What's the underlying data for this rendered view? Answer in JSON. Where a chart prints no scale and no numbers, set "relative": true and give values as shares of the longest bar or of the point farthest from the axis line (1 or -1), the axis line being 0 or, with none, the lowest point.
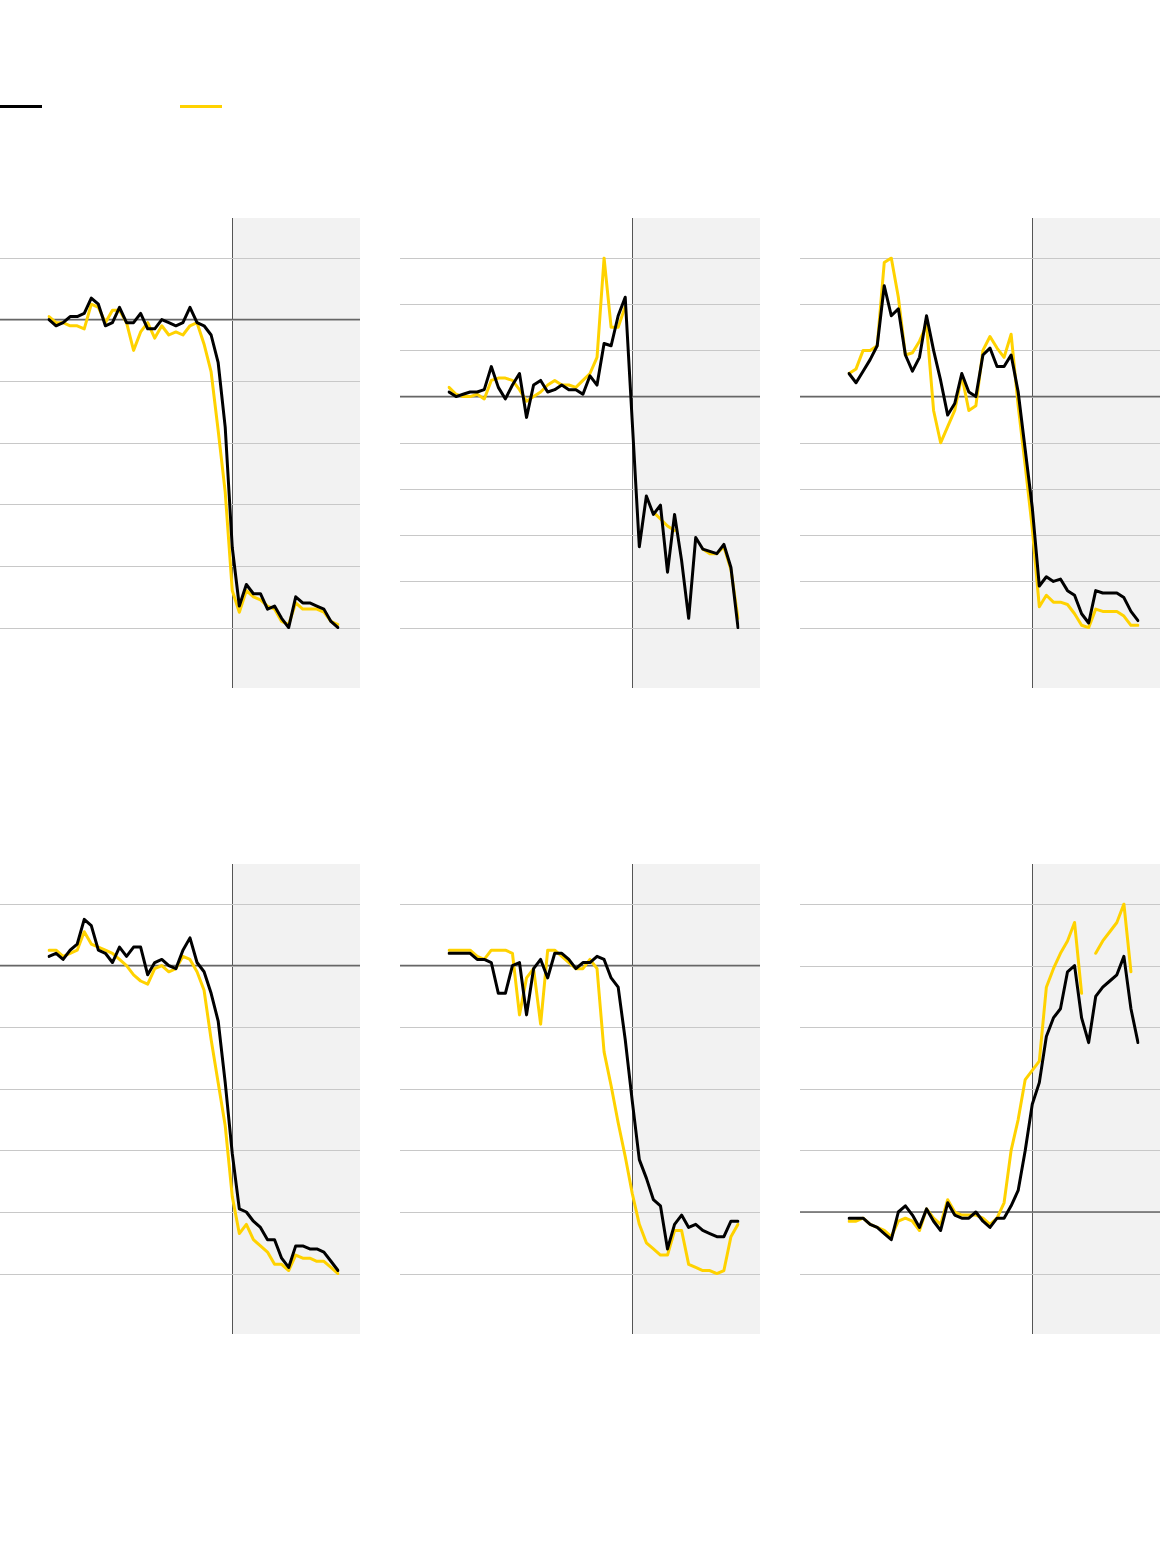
{
  "chart_data": [
    {
      "type": "line",
      "relative": true,
      "categories": [
        null,
        null,
        null,
        null,
        null,
        null,
        null,
        null,
        null,
        null,
        null,
        null,
        null,
        null,
        null,
        null,
        null,
        null,
        null,
        null,
        null,
        null,
        null,
        null,
        null,
        null,
        null,
        null,
        null,
        null,
        null,
        null,
        null,
        null,
        null,
        null,
        null,
        null,
        null,
        null,
        null,
        null
      ],
      "grid": "y",
      "marker": "none",
      "line_style": "solid",
      "series": [
        {
          "color": "#000000",
          "values": [
            0.0,
            -0.02,
            -0.01,
            0.01,
            0.01,
            0.02,
            0.07,
            0.05,
            -0.02,
            -0.01,
            0.04,
            -0.01,
            -0.01,
            0.02,
            -0.03,
            -0.03,
            0,
            -0.01,
            -0.02,
            -0.01,
            0.04,
            -0.01,
            -0.02,
            -0.05,
            -0.14,
            -0.35,
            -0.74,
            -0.93,
            -0.86,
            -0.89,
            -0.89,
            -0.94,
            -0.93,
            -0.97,
            -1,
            -0.9,
            -0.92,
            -0.92,
            -0.93,
            -0.94,
            -0.98,
            -1
          ]
        },
        {
          "color": "#ffd200",
          "values": [
            0.01,
            -0.01,
            -0.01,
            -0.02,
            -0.02,
            -0.03,
            0.05,
            0.04,
            -0.01,
            0.03,
            0.03,
            -0.01,
            -0.1,
            -0.04,
            -0.01,
            -0.06,
            -0.02,
            -0.05,
            -0.04,
            -0.05,
            -0.02,
            -0.01,
            -0.08,
            -0.17,
            -0.36,
            -0.56,
            -0.88,
            -0.95,
            -0.88,
            -0.9,
            -0.91,
            -0.93,
            -0.94,
            -0.98,
            -0.99,
            -0.92,
            -0.94,
            -0.94,
            -0.94,
            -0.95,
            -0.98,
            -0.99
          ]
        }
      ]
    },
    {
      "type": "line",
      "relative": true,
      "categories": [
        null,
        null,
        null,
        null,
        null,
        null,
        null,
        null,
        null,
        null,
        null,
        null,
        null,
        null,
        null,
        null,
        null,
        null,
        null,
        null,
        null,
        null,
        null,
        null,
        null,
        null,
        null,
        null,
        null,
        null,
        null,
        null,
        null,
        null,
        null,
        null,
        null,
        null,
        null,
        null,
        null,
        null
      ],
      "grid": "y",
      "marker": "none",
      "line_style": "solid",
      "series": [
        {
          "color": "#000000",
          "values": [
            0.02,
            0,
            0.01,
            0.02,
            0.02,
            0.03,
            0.13,
            0.04,
            -0.01,
            0.05,
            0.1,
            -0.09,
            0.05,
            0.07,
            0.02,
            0.03,
            0.05,
            0.03,
            0.03,
            0.01,
            0.09,
            0.05,
            0.23,
            0.22,
            0.35,
            0.43,
            -0.11,
            -0.65,
            -0.43,
            -0.51,
            -0.47,
            -0.76,
            -0.51,
            -0.71,
            -0.96,
            -0.61,
            -0.66,
            -0.67,
            -0.68,
            -0.64,
            -0.74,
            -1
          ]
        },
        {
          "color": "#ffd200",
          "values": [
            0.04,
            0.01,
            0.0,
            0.0,
            0.01,
            -0.01,
            0.07,
            0.08,
            0.08,
            0.07,
            0.03,
            -0.02,
            0.0,
            0.02,
            0.05,
            0.07,
            0.05,
            0.05,
            0.04,
            0.07,
            0.1,
            0.17,
            0.6,
            0.3,
            0.3,
            0.39,
            null,
            null,
            null,
            -0.5,
            -0.53,
            -0.56,
            -0.58,
            null,
            null,
            null,
            -0.66,
            -0.68,
            -0.68,
            -0.65,
            -0.75,
            -0.96
          ]
        }
      ]
    },
    {
      "type": "line",
      "relative": true,
      "categories": [
        null,
        null,
        null,
        null,
        null,
        null,
        null,
        null,
        null,
        null,
        null,
        null,
        null,
        null,
        null,
        null,
        null,
        null,
        null,
        null,
        null,
        null,
        null,
        null,
        null,
        null,
        null,
        null,
        null,
        null,
        null,
        null,
        null,
        null,
        null,
        null,
        null,
        null,
        null,
        null,
        null,
        null
      ],
      "grid": "y",
      "marker": "none",
      "line_style": "solid",
      "series": [
        {
          "color": "#000000",
          "values": [
            0.1,
            0.06,
            0.11,
            0.16,
            0.22,
            0.48,
            0.35,
            0.38,
            0.18,
            0.11,
            0.17,
            0.35,
            0.2,
            0.07,
            -0.08,
            -0.03,
            0.1,
            0.02,
            0.0,
            0.18,
            0.21,
            0.13,
            0.13,
            0.18,
            0.02,
            -0.23,
            -0.48,
            -0.82,
            -0.78,
            -0.8,
            -0.79,
            -0.84,
            -0.86,
            -0.94,
            -0.98,
            -0.84,
            -0.85,
            -0.85,
            -0.85,
            -0.87,
            -0.93,
            -0.97
          ]
        },
        {
          "color": "#ffd200",
          "values": [
            0.1,
            0.12,
            0.2,
            0.2,
            0.22,
            0.58,
            0.6,
            0.43,
            0.18,
            0.19,
            0.24,
            0.31,
            -0.06,
            -0.2,
            -0.13,
            -0.06,
            0.09,
            -0.06,
            -0.04,
            0.2,
            0.26,
            0.21,
            0.17,
            0.27,
            -0.04,
            -0.3,
            -0.57,
            -0.91,
            -0.86,
            -0.89,
            -0.89,
            -0.9,
            -0.94,
            -0.99,
            -1,
            -0.92,
            -0.93,
            -0.93,
            -0.93,
            -0.95,
            -0.99,
            -0.99
          ]
        }
      ]
    },
    {
      "type": "line",
      "relative": true,
      "categories": [
        null,
        null,
        null,
        null,
        null,
        null,
        null,
        null,
        null,
        null,
        null,
        null,
        null,
        null,
        null,
        null,
        null,
        null,
        null,
        null,
        null,
        null,
        null,
        null,
        null,
        null,
        null,
        null,
        null,
        null,
        null,
        null,
        null,
        null,
        null,
        null,
        null,
        null,
        null,
        null,
        null,
        null
      ],
      "grid": "y",
      "marker": "none",
      "line_style": "solid",
      "series": [
        {
          "color": "#000000",
          "values": [
            0.03,
            0.04,
            0.02,
            0.05,
            0.07,
            0.15,
            0.13,
            0.05,
            0.04,
            0.01,
            0.06,
            0.03,
            0.06,
            0.06,
            -0.03,
            0.01,
            0.02,
            0.0,
            -0.01,
            0.05,
            0.09,
            0.01,
            -0.02,
            -0.09,
            -0.18,
            -0.38,
            -0.61,
            -0.79,
            -0.8,
            -0.83,
            -0.85,
            -0.89,
            -0.89,
            -0.95,
            -0.98,
            -0.91,
            -0.91,
            -0.92,
            -0.92,
            -0.93,
            -0.96,
            -0.99
          ]
        },
        {
          "color": "#ffd200",
          "values": [
            0.05,
            0.05,
            0.03,
            0.04,
            0.05,
            0.11,
            0.07,
            0.06,
            0.05,
            0.04,
            0.02,
            0.0,
            -0.03,
            -0.05,
            -0.06,
            -0.01,
            0.0,
            -0.02,
            -0.01,
            0.03,
            0.02,
            -0.02,
            -0.08,
            -0.24,
            -0.38,
            -0.52,
            -0.75,
            -0.87,
            -0.84,
            -0.89,
            -0.91,
            -0.93,
            -0.97,
            -0.97,
            -0.99,
            -0.94,
            -0.95,
            -0.95,
            -0.96,
            -0.96,
            -0.98,
            -1
          ]
        }
      ]
    },
    {
      "type": "line",
      "relative": true,
      "categories": [
        null,
        null,
        null,
        null,
        null,
        null,
        null,
        null,
        null,
        null,
        null,
        null,
        null,
        null,
        null,
        null,
        null,
        null,
        null,
        null,
        null,
        null,
        null,
        null,
        null,
        null,
        null,
        null,
        null,
        null,
        null,
        null,
        null,
        null,
        null,
        null,
        null,
        null,
        null,
        null,
        null,
        null
      ],
      "grid": "y",
      "marker": "none",
      "line_style": "solid",
      "series": [
        {
          "color": "#000000",
          "values": [
            0.04,
            0.04,
            0.04,
            0.04,
            0.02,
            0.02,
            0.01,
            -0.09,
            -0.09,
            0.0,
            0.01,
            -0.16,
            -0.01,
            0.02,
            -0.04,
            0.04,
            0.04,
            0.02,
            -0.01,
            0.01,
            0.01,
            0.03,
            0.02,
            -0.04,
            -0.07,
            -0.24,
            -0.44,
            -0.63,
            -0.69,
            -0.76,
            -0.78,
            -0.92,
            -0.84,
            -0.81,
            -0.85,
            -0.84,
            -0.86,
            -0.87,
            -0.88,
            -0.88,
            -0.83,
            -0.83
          ]
        },
        {
          "color": "#ffd200",
          "values": [
            0.05,
            0.05,
            0.05,
            0.05,
            0.03,
            0.02,
            0.05,
            0.05,
            0.05,
            0.04,
            -0.16,
            -0.04,
            -0.01,
            -0.19,
            0.05,
            0.05,
            0.03,
            0.01,
            -0.01,
            -0.01,
            0.02,
            -0.01,
            -0.28,
            -0.39,
            -0.51,
            -0.62,
            -0.74,
            -0.84,
            -0.9,
            -0.92,
            -0.94,
            -0.94,
            -0.86,
            -0.86,
            -0.97,
            -0.98,
            -0.99,
            -0.99,
            -1,
            -0.99,
            -0.88,
            -0.84
          ]
        }
      ]
    },
    {
      "type": "line",
      "relative": true,
      "categories": [
        null,
        null,
        null,
        null,
        null,
        null,
        null,
        null,
        null,
        null,
        null,
        null,
        null,
        null,
        null,
        null,
        null,
        null,
        null,
        null,
        null,
        null,
        null,
        null,
        null,
        null,
        null,
        null,
        null,
        null,
        null,
        null,
        null,
        null,
        null,
        null,
        null,
        null,
        null,
        null,
        null,
        null
      ],
      "grid": "y",
      "marker": "none",
      "line_style": "solid",
      "series": [
        {
          "color": "#000000",
          "values": [
            -0.02,
            -0.02,
            -0.02,
            -0.04,
            -0.05,
            -0.07,
            -0.09,
            0.0,
            0.02,
            -0.01,
            -0.05,
            0.01,
            -0.03,
            -0.06,
            0.03,
            -0.01,
            -0.02,
            -0.02,
            0.0,
            -0.03,
            -0.05,
            -0.02,
            -0.02,
            0.02,
            0.07,
            0.2,
            0.35,
            0.42,
            0.57,
            0.63,
            0.66,
            0.78,
            0.8,
            0.63,
            0.55,
            0.7,
            0.73,
            0.75,
            0.77,
            0.83,
            0.66,
            0.55
          ]
        },
        {
          "color": "#ffd200",
          "values": [
            -0.03,
            -0.03,
            -0.02,
            -0.04,
            -0.05,
            -0.06,
            -0.08,
            -0.03,
            -0.02,
            -0.03,
            -0.06,
            0.01,
            -0.02,
            -0.04,
            0.04,
            0.0,
            -0.01,
            -0.01,
            -0.01,
            -0.02,
            -0.04,
            -0.02,
            0.03,
            0.2,
            0.3,
            0.43,
            0.46,
            0.49,
            0.73,
            0.79,
            0.84,
            0.88,
            0.94,
            0.71,
            null,
            0.84,
            0.88,
            0.91,
            0.94,
            1,
            0.78,
            null
          ]
        }
      ]
    }
  ]
}
